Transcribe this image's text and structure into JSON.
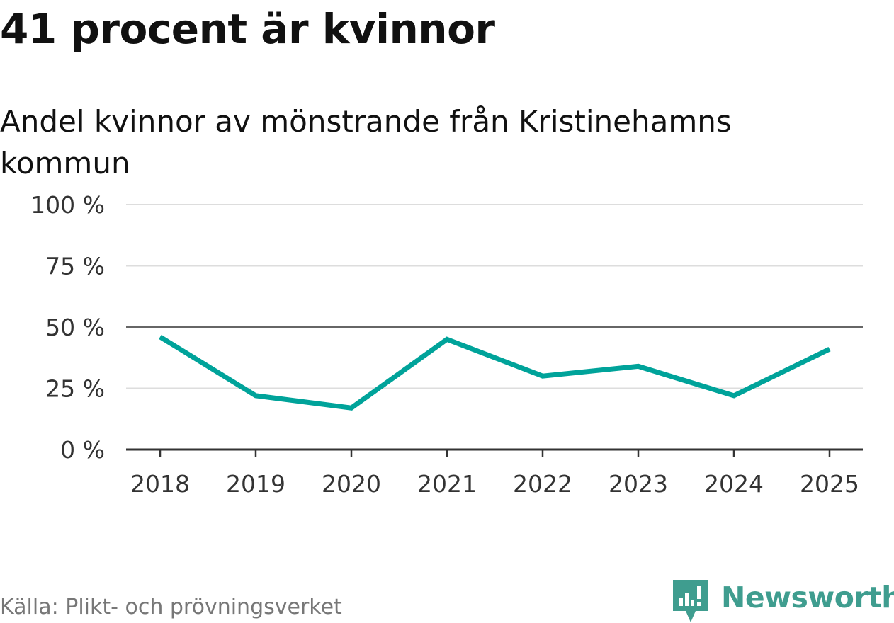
{
  "header": {
    "title": "41 procent är kvinnor",
    "subtitle": "Andel kvinnor av mönstrande från Kristinehamns kommun"
  },
  "footer": {
    "source": "Källa: Plikt- och prövningsverket",
    "brand": "Newsworthy"
  },
  "colors": {
    "line": "#00a39a",
    "grid": "#dddddd",
    "reference": "#666666",
    "axis": "#333333",
    "brand": "#3f9d8f"
  },
  "icons": {
    "brand_logo": "newsworthy-logo-icon"
  },
  "chart_data": {
    "type": "line",
    "title": "41 procent är kvinnor",
    "subtitle": "Andel kvinnor av mönstrande från Kristinehamns kommun",
    "xlabel": "",
    "ylabel": "",
    "categories": [
      "2018",
      "2019",
      "2020",
      "2021",
      "2022",
      "2023",
      "2024",
      "2025"
    ],
    "series": [
      {
        "name": "Andel kvinnor",
        "values": [
          46,
          22,
          17,
          45,
          30,
          34,
          22,
          41
        ]
      }
    ],
    "ylim": [
      0,
      100
    ],
    "yticks": [
      0,
      25,
      50,
      75,
      100
    ],
    "ytick_labels": [
      "0 %",
      "25 %",
      "50 %",
      "75 %",
      "100 %"
    ],
    "reference_line": 50,
    "grid": true,
    "legend": "none"
  }
}
